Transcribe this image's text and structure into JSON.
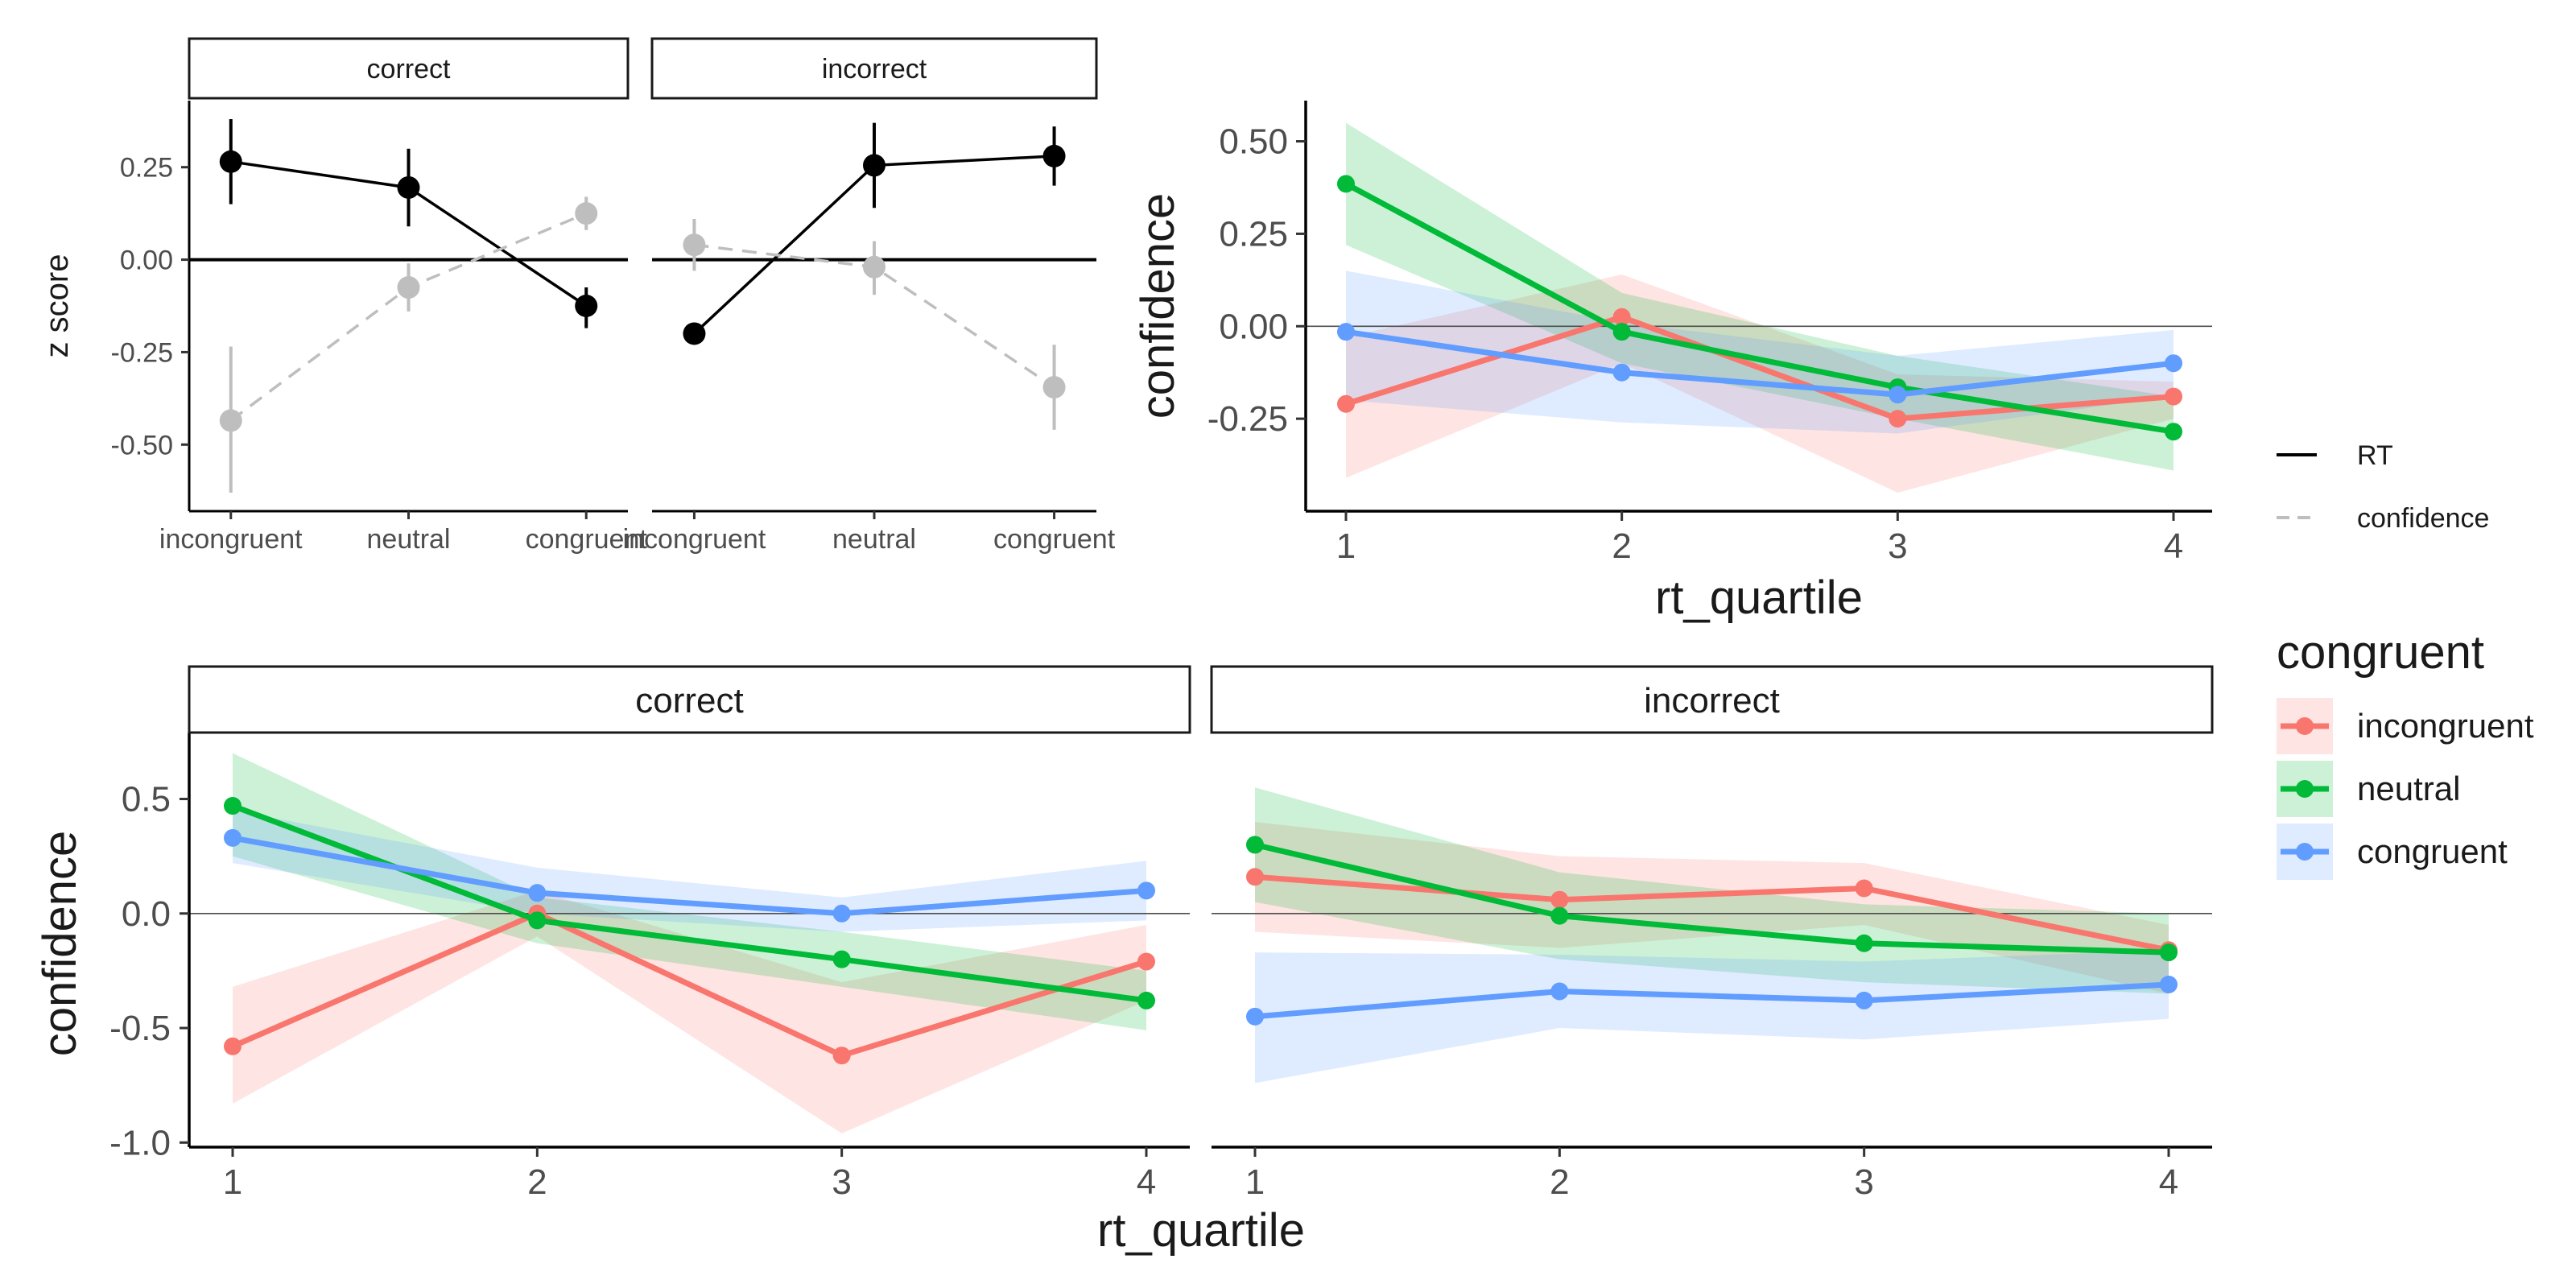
{
  "colors": {
    "incongruent": "#F8766D",
    "neutral": "#00BA38",
    "congruent": "#619CFF",
    "rt": "#000000",
    "confidence": "#BEBEBE"
  },
  "chart_data": [
    {
      "id": "zscore",
      "type": "line",
      "facets": [
        "correct",
        "incorrect"
      ],
      "categories": [
        "incongruent",
        "neutral",
        "congruent"
      ],
      "ylabel": "z score",
      "ylim": [
        -0.68,
        0.43
      ],
      "yticks": [
        0.25,
        0.0,
        -0.25,
        -0.5
      ],
      "ytick_labels": [
        "0.25",
        "0.00",
        "-0.25",
        "-0.50"
      ],
      "reference_line_y": 0,
      "series": [
        {
          "name": "RT",
          "color": "#000000",
          "dashed": false,
          "values": {
            "correct": [
              0.265,
              0.195,
              -0.125
            ],
            "incorrect": [
              -0.2,
              0.255,
              0.28
            ]
          },
          "errors": {
            "correct": [
              [
                0.15,
                0.38
              ],
              [
                0.09,
                0.3
              ],
              [
                -0.185,
                -0.075
              ]
            ],
            "incorrect": [
              [
                -0.205,
                -0.195
              ],
              [
                0.14,
                0.37
              ],
              [
                0.2,
                0.36
              ]
            ]
          }
        },
        {
          "name": "confidence",
          "color": "#BEBEBE",
          "dashed": true,
          "values": {
            "correct": [
              -0.435,
              -0.075,
              0.125
            ],
            "incorrect": [
              0.04,
              -0.02,
              -0.345
            ]
          },
          "errors": {
            "correct": [
              [
                -0.63,
                -0.235
              ],
              [
                -0.14,
                -0.01
              ],
              [
                0.08,
                0.17
              ]
            ],
            "incorrect": [
              [
                -0.03,
                0.11
              ],
              [
                -0.095,
                0.05
              ],
              [
                -0.46,
                -0.23
              ]
            ]
          }
        }
      ]
    },
    {
      "id": "overall",
      "type": "line",
      "xlabel": "rt_quartile",
      "ylabel": "confidence",
      "x": [
        1,
        2,
        3,
        4
      ],
      "ylim": [
        -0.5,
        0.61
      ],
      "yticks": [
        0.5,
        0.25,
        0.0,
        -0.25
      ],
      "ytick_labels": [
        "0.50",
        "0.25",
        "0.00",
        "-0.25"
      ],
      "reference_line_y": 0,
      "series": [
        {
          "name": "incongruent",
          "values": [
            -0.21,
            0.025,
            -0.25,
            -0.19
          ],
          "band_lower": [
            -0.41,
            -0.1,
            -0.45,
            -0.25
          ],
          "band_upper": [
            -0.03,
            0.14,
            -0.13,
            -0.15
          ]
        },
        {
          "name": "neutral",
          "values": [
            0.385,
            -0.015,
            -0.165,
            -0.285
          ],
          "band_lower": [
            0.22,
            -0.1,
            -0.25,
            -0.39
          ],
          "band_upper": [
            0.55,
            0.09,
            -0.08,
            -0.19
          ]
        },
        {
          "name": "congruent",
          "values": [
            -0.015,
            -0.125,
            -0.185,
            -0.1
          ],
          "band_lower": [
            -0.2,
            -0.26,
            -0.29,
            -0.19
          ],
          "band_upper": [
            0.15,
            0.01,
            -0.08,
            -0.01
          ]
        }
      ]
    },
    {
      "id": "faceted",
      "type": "line",
      "xlabel": "rt_quartile",
      "ylabel": "confidence",
      "x": [
        1,
        2,
        3,
        4
      ],
      "facets": [
        "correct",
        "incorrect"
      ],
      "ylim": [
        -1.02,
        0.79
      ],
      "yticks": [
        0.5,
        0.0,
        -0.5,
        -1.0
      ],
      "ytick_labels": [
        "0.5",
        "0.0",
        "-0.5",
        "-1.0"
      ],
      "reference_line_y": 0,
      "series": [
        {
          "name": "incongruent",
          "values": {
            "correct": [
              -0.58,
              0.0,
              -0.62,
              -0.21
            ],
            "incorrect": [
              0.16,
              0.06,
              0.11,
              -0.16
            ]
          },
          "band_lower": {
            "correct": [
              -0.83,
              -0.1,
              -0.96,
              -0.38
            ],
            "incorrect": [
              -0.08,
              -0.15,
              -0.05,
              -0.35
            ]
          },
          "band_upper": {
            "correct": [
              -0.32,
              0.1,
              -0.3,
              -0.05
            ],
            "incorrect": [
              0.4,
              0.25,
              0.22,
              -0.05
            ]
          }
        },
        {
          "name": "neutral",
          "values": {
            "correct": [
              0.47,
              -0.03,
              -0.2,
              -0.38
            ],
            "incorrect": [
              0.3,
              -0.01,
              -0.13,
              -0.17
            ]
          },
          "band_lower": {
            "correct": [
              0.25,
              -0.13,
              -0.32,
              -0.51
            ],
            "incorrect": [
              0.05,
              -0.2,
              -0.3,
              -0.35
            ]
          },
          "band_upper": {
            "correct": [
              0.7,
              0.07,
              -0.08,
              -0.25
            ],
            "incorrect": [
              0.55,
              0.18,
              0.04,
              0.0
            ]
          }
        },
        {
          "name": "congruent",
          "values": {
            "correct": [
              0.33,
              0.09,
              0.0,
              0.1
            ],
            "incorrect": [
              -0.45,
              -0.34,
              -0.38,
              -0.31
            ]
          },
          "band_lower": {
            "correct": [
              0.22,
              0.0,
              -0.08,
              -0.03
            ],
            "incorrect": [
              -0.74,
              -0.5,
              -0.55,
              -0.46
            ]
          },
          "band_upper": {
            "correct": [
              0.45,
              0.2,
              0.07,
              0.23
            ],
            "incorrect": [
              -0.17,
              -0.18,
              -0.21,
              -0.16
            ]
          }
        }
      ]
    }
  ],
  "legend_linetype": {
    "items": [
      {
        "label": "RT",
        "color": "#000000",
        "dashed": false
      },
      {
        "label": "confidence",
        "color": "#BEBEBE",
        "dashed": true
      }
    ]
  },
  "legend_congruent": {
    "title": "congruent",
    "items": [
      {
        "label": "incongruent",
        "color": "#F8766D"
      },
      {
        "label": "neutral",
        "color": "#00BA38"
      },
      {
        "label": "congruent",
        "color": "#619CFF"
      }
    ]
  }
}
